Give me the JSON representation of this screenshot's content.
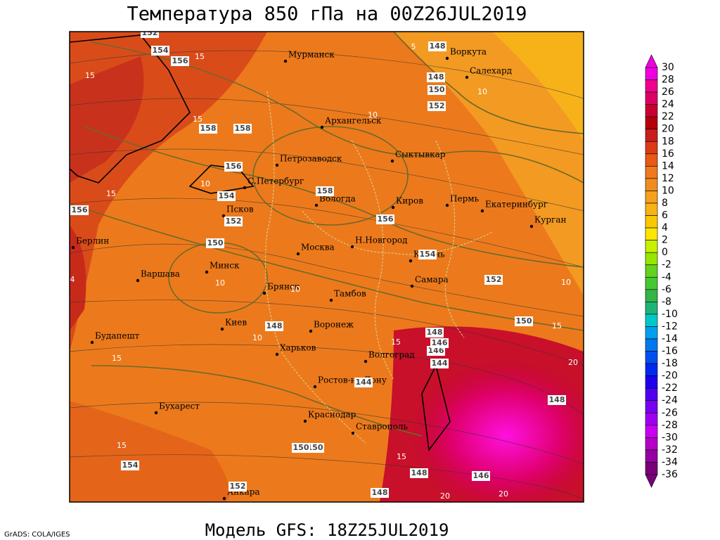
{
  "title": "Температура 850 гПа на 00Z26JUL2019",
  "subtitle": "Модель GFS: 18Z25JUL2019",
  "credit": "GrADS: COLA/IGES",
  "cities": [
    "Мурманск",
    "Воркута",
    "Салехард",
    "Архангельск",
    "Петрозаводск",
    "Сыктывкар",
    "С.Петербург",
    "Вологда",
    "Киров",
    "Пермь",
    "Екатеринбург",
    "Курган",
    "Псков",
    "Н.Новгород",
    "Казань",
    "Берлин",
    "Москва",
    "Минск",
    "Варшава",
    "Самара",
    "Брянск",
    "Тамбов",
    "Киев",
    "Воронеж",
    "Будапешт",
    "Харьков",
    "Волгоград",
    "Ростов-на-Дону",
    "Бухарест",
    "Краснодар",
    "Ставрополь",
    "Анкара"
  ],
  "contour_labels": [
    152,
    154,
    156,
    158,
    158,
    156,
    154,
    152,
    150,
    158,
    156,
    154,
    152,
    150,
    148,
    144,
    146,
    148,
    150,
    152,
    148,
    146,
    144,
    148,
    148,
    146,
    150,
    152,
    154,
    156,
    148,
    150,
    148
  ],
  "isotherm_labels": [
    15,
    15,
    15,
    10,
    10,
    10,
    10,
    10,
    10,
    15,
    15,
    15,
    15,
    20,
    20,
    10,
    15,
    4,
    5,
    15,
    20
  ],
  "colorbar": {
    "ticks": [
      30,
      28,
      26,
      24,
      22,
      20,
      18,
      16,
      14,
      12,
      10,
      8,
      6,
      4,
      2,
      0,
      -2,
      -4,
      -6,
      -8,
      -10,
      -12,
      -14,
      -16,
      -18,
      -20,
      -22,
      -24,
      -26,
      -28,
      -30,
      -32,
      -34,
      -36
    ],
    "colors": [
      "#f000e0",
      "#f0008c",
      "#dc0064",
      "#c80032",
      "#b4000a",
      "#c81e1e",
      "#dc3c14",
      "#e65a14",
      "#f0781e",
      "#f08c1e",
      "#f5a01e",
      "#f5b414",
      "#fac800",
      "#ffe600",
      "#c8f000",
      "#96e600",
      "#64d21e",
      "#46c832",
      "#32b446",
      "#1eb478",
      "#00c8c8",
      "#00a0f0",
      "#0078f0",
      "#0050f0",
      "#0028f0",
      "#1e00f0",
      "#5000f0",
      "#7800f0",
      "#a000f0",
      "#c800f0",
      "#b400c8",
      "#9600a0",
      "#780078"
    ]
  }
}
